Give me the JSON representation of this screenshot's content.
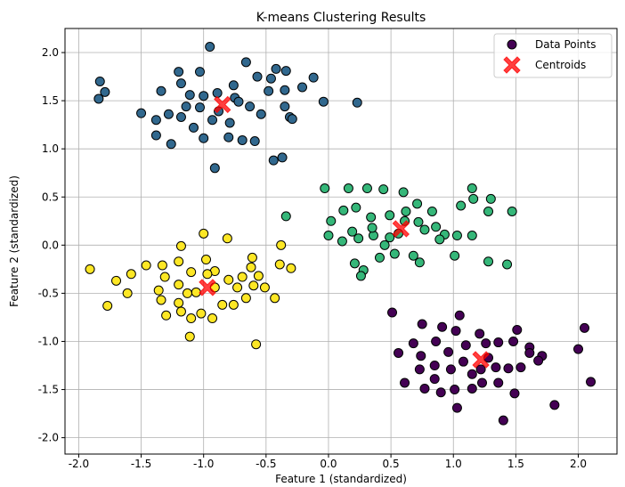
{
  "chart_data": {
    "type": "scatter",
    "title": "K-means Clustering Results",
    "xlabel": "Feature 1 (standardized)",
    "ylabel": "Feature 2 (standardized)",
    "xlim": [
      -2.11,
      2.31
    ],
    "ylim": [
      -2.17,
      2.25
    ],
    "xticks": [
      "-2.0",
      "-1.5",
      "-1.0",
      "-0.5",
      "0.0",
      "0.5",
      "1.0",
      "1.5",
      "2.0"
    ],
    "yticks": [
      "-2.0",
      "-1.5",
      "-1.0",
      "-0.5",
      "0.0",
      "0.5",
      "1.0",
      "1.5",
      "2.0"
    ],
    "grid": true,
    "legend_position": "top-right",
    "legend": [
      "Data Points",
      "Centroids"
    ],
    "colors": {
      "cluster0": "#440154",
      "cluster1": "#31688e",
      "cluster2": "#35b779",
      "cluster3": "#fde725",
      "centroid": "#ff0000"
    },
    "clusters": [
      {
        "color": "#440154",
        "points": [
          [
            0.51,
            -0.7
          ],
          [
            1.05,
            -0.73
          ],
          [
            0.75,
            -0.82
          ],
          [
            0.91,
            -0.85
          ],
          [
            1.02,
            -0.89
          ],
          [
            1.21,
            -0.92
          ],
          [
            1.51,
            -0.88
          ],
          [
            2.05,
            -0.86
          ],
          [
            0.68,
            -1.02
          ],
          [
            0.86,
            -1.0
          ],
          [
            1.1,
            -1.04
          ],
          [
            1.26,
            -1.02
          ],
          [
            1.36,
            -1.01
          ],
          [
            1.48,
            -1.0
          ],
          [
            1.61,
            -1.06
          ],
          [
            0.56,
            -1.12
          ],
          [
            0.74,
            -1.15
          ],
          [
            0.96,
            -1.11
          ],
          [
            1.28,
            -1.17
          ],
          [
            1.61,
            -1.12
          ],
          [
            1.71,
            -1.15
          ],
          [
            2.0,
            -1.08
          ],
          [
            0.73,
            -1.29
          ],
          [
            0.85,
            -1.25
          ],
          [
            0.98,
            -1.29
          ],
          [
            1.08,
            -1.21
          ],
          [
            1.34,
            -1.27
          ],
          [
            1.44,
            -1.28
          ],
          [
            1.54,
            -1.27
          ],
          [
            1.68,
            -1.2
          ],
          [
            2.1,
            -1.42
          ],
          [
            0.77,
            -1.49
          ],
          [
            0.9,
            -1.53
          ],
          [
            1.01,
            -1.5
          ],
          [
            1.15,
            -1.49
          ],
          [
            1.23,
            -1.43
          ],
          [
            1.36,
            -1.43
          ],
          [
            1.49,
            -1.54
          ],
          [
            1.81,
            -1.66
          ],
          [
            1.03,
            -1.69
          ],
          [
            1.4,
            -1.82
          ],
          [
            0.85,
            -1.39
          ],
          [
            1.15,
            -1.34
          ],
          [
            0.61,
            -1.43
          ],
          [
            1.22,
            -1.29
          ]
        ]
      },
      {
        "color": "#31688e",
        "points": [
          [
            -0.95,
            2.06
          ],
          [
            -1.83,
            1.7
          ],
          [
            -1.79,
            1.59
          ],
          [
            -1.84,
            1.52
          ],
          [
            -1.5,
            1.37
          ],
          [
            -1.34,
            1.6
          ],
          [
            -1.2,
            1.8
          ],
          [
            -1.18,
            1.68
          ],
          [
            -1.03,
            1.8
          ],
          [
            -0.66,
            1.9
          ],
          [
            -0.57,
            1.75
          ],
          [
            -0.46,
            1.73
          ],
          [
            -0.42,
            1.83
          ],
          [
            -0.34,
            1.81
          ],
          [
            -0.21,
            1.64
          ],
          [
            -0.12,
            1.74
          ],
          [
            -0.35,
            1.61
          ],
          [
            -0.48,
            1.6
          ],
          [
            -0.76,
            1.66
          ],
          [
            -0.75,
            1.53
          ],
          [
            -0.89,
            1.58
          ],
          [
            -1.0,
            1.55
          ],
          [
            -1.11,
            1.56
          ],
          [
            -1.14,
            1.44
          ],
          [
            -1.28,
            1.36
          ],
          [
            -1.38,
            1.3
          ],
          [
            -1.38,
            1.14
          ],
          [
            -1.26,
            1.05
          ],
          [
            -1.08,
            1.22
          ],
          [
            -0.93,
            1.3
          ],
          [
            -0.8,
            1.12
          ],
          [
            -0.69,
            1.09
          ],
          [
            -0.59,
            1.08
          ],
          [
            -0.44,
            0.88
          ],
          [
            -0.37,
            0.91
          ],
          [
            -0.91,
            0.8
          ],
          [
            -1.0,
            1.11
          ],
          [
            -0.79,
            1.27
          ],
          [
            -0.63,
            1.44
          ],
          [
            -0.54,
            1.36
          ],
          [
            -0.35,
            1.44
          ],
          [
            -0.31,
            1.33
          ],
          [
            -0.29,
            1.31
          ],
          [
            -0.04,
            1.49
          ],
          [
            0.23,
            1.48
          ],
          [
            -1.18,
            1.33
          ],
          [
            -1.03,
            1.43
          ],
          [
            -0.88,
            1.39
          ],
          [
            -0.72,
            1.49
          ]
        ]
      },
      {
        "color": "#35b779",
        "points": [
          [
            -0.03,
            0.59
          ],
          [
            0.16,
            0.59
          ],
          [
            0.31,
            0.59
          ],
          [
            0.44,
            0.58
          ],
          [
            0.6,
            0.55
          ],
          [
            1.15,
            0.59
          ],
          [
            1.3,
            0.48
          ],
          [
            1.16,
            0.48
          ],
          [
            1.06,
            0.41
          ],
          [
            1.28,
            0.35
          ],
          [
            1.47,
            0.35
          ],
          [
            0.71,
            0.43
          ],
          [
            0.83,
            0.35
          ],
          [
            0.02,
            0.25
          ],
          [
            0.0,
            0.1
          ],
          [
            0.12,
            0.36
          ],
          [
            0.22,
            0.39
          ],
          [
            0.19,
            0.14
          ],
          [
            0.34,
            0.29
          ],
          [
            0.49,
            0.31
          ],
          [
            0.61,
            0.25
          ],
          [
            0.72,
            0.24
          ],
          [
            0.86,
            0.19
          ],
          [
            0.93,
            0.11
          ],
          [
            1.03,
            0.1
          ],
          [
            1.15,
            0.1
          ],
          [
            0.89,
            0.06
          ],
          [
            0.11,
            0.04
          ],
          [
            0.24,
            0.07
          ],
          [
            0.36,
            0.1
          ],
          [
            0.49,
            0.08
          ],
          [
            0.41,
            -0.13
          ],
          [
            0.53,
            -0.09
          ],
          [
            0.68,
            -0.11
          ],
          [
            0.73,
            -0.18
          ],
          [
            1.01,
            -0.11
          ],
          [
            1.28,
            -0.17
          ],
          [
            1.43,
            -0.2
          ],
          [
            0.21,
            -0.19
          ],
          [
            0.28,
            -0.26
          ],
          [
            0.26,
            -0.32
          ],
          [
            -0.34,
            0.3
          ],
          [
            0.62,
            0.35
          ],
          [
            0.77,
            0.16
          ],
          [
            0.35,
            0.18
          ],
          [
            0.45,
            0.0
          ],
          [
            0.56,
            0.12
          ]
        ]
      },
      {
        "color": "#fde725",
        "points": [
          [
            -1.91,
            -0.25
          ],
          [
            -1.7,
            -0.37
          ],
          [
            -1.77,
            -0.63
          ],
          [
            -1.61,
            -0.5
          ],
          [
            -1.58,
            -0.3
          ],
          [
            -1.46,
            -0.21
          ],
          [
            -1.33,
            -0.21
          ],
          [
            -1.2,
            -0.17
          ],
          [
            -1.18,
            -0.01
          ],
          [
            -1.0,
            0.12
          ],
          [
            -0.81,
            0.07
          ],
          [
            -1.31,
            -0.33
          ],
          [
            -1.36,
            -0.47
          ],
          [
            -1.34,
            -0.57
          ],
          [
            -1.3,
            -0.73
          ],
          [
            -1.2,
            -0.6
          ],
          [
            -1.11,
            -0.95
          ],
          [
            -1.1,
            -0.76
          ],
          [
            -1.1,
            -0.28
          ],
          [
            -0.98,
            -0.15
          ],
          [
            -0.91,
            -0.27
          ],
          [
            -0.91,
            -0.44
          ],
          [
            -1.06,
            -0.49
          ],
          [
            -0.85,
            -0.62
          ],
          [
            -0.76,
            -0.62
          ],
          [
            -0.66,
            -0.55
          ],
          [
            -0.6,
            -0.42
          ],
          [
            -0.73,
            -0.44
          ],
          [
            -0.69,
            -0.33
          ],
          [
            -0.56,
            -0.32
          ],
          [
            -0.61,
            -0.13
          ],
          [
            -0.62,
            -0.23
          ],
          [
            -0.39,
            -0.2
          ],
          [
            -0.3,
            -0.24
          ],
          [
            -0.38,
            0.0
          ],
          [
            -0.43,
            -0.55
          ],
          [
            -0.58,
            -1.03
          ],
          [
            -0.93,
            -0.76
          ],
          [
            -1.02,
            -0.71
          ],
          [
            -1.18,
            -0.69
          ],
          [
            -0.8,
            -0.36
          ],
          [
            -0.97,
            -0.3
          ],
          [
            -1.2,
            -0.41
          ],
          [
            -1.13,
            -0.5
          ],
          [
            -0.51,
            -0.44
          ]
        ]
      }
    ],
    "centroids": [
      [
        1.22,
        -1.19
      ],
      [
        -0.85,
        1.46
      ],
      [
        0.58,
        0.17
      ],
      [
        -0.97,
        -0.44
      ]
    ]
  }
}
